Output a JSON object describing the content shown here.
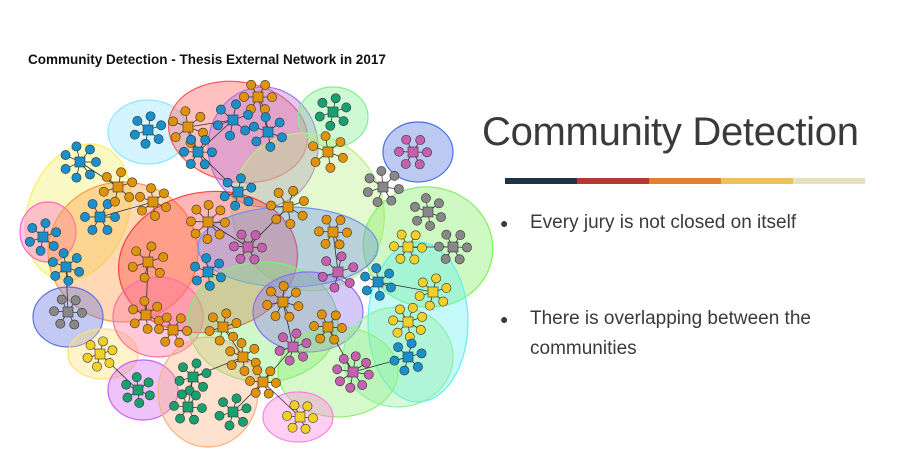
{
  "figure": {
    "title": "Community Detection - Thesis External Network in 2017"
  },
  "slide": {
    "title": "Community Detection",
    "rule_colors": [
      "#1f3347",
      "#b33a32",
      "#e0813a",
      "#f0c060",
      "#e6e1c0"
    ],
    "bullet_glyph": "●",
    "bullets": [
      "Every jury is not closed on itself",
      "There is overlapping between the communities"
    ]
  },
  "colors": {
    "accent_blue": "#1a8fc9",
    "accent_orange": "#e0920a",
    "accent_gray": "#888888",
    "accent_pink": "#c560b0",
    "accent_yellow": "#f2d02a",
    "accent_teal": "#1aa070"
  }
}
